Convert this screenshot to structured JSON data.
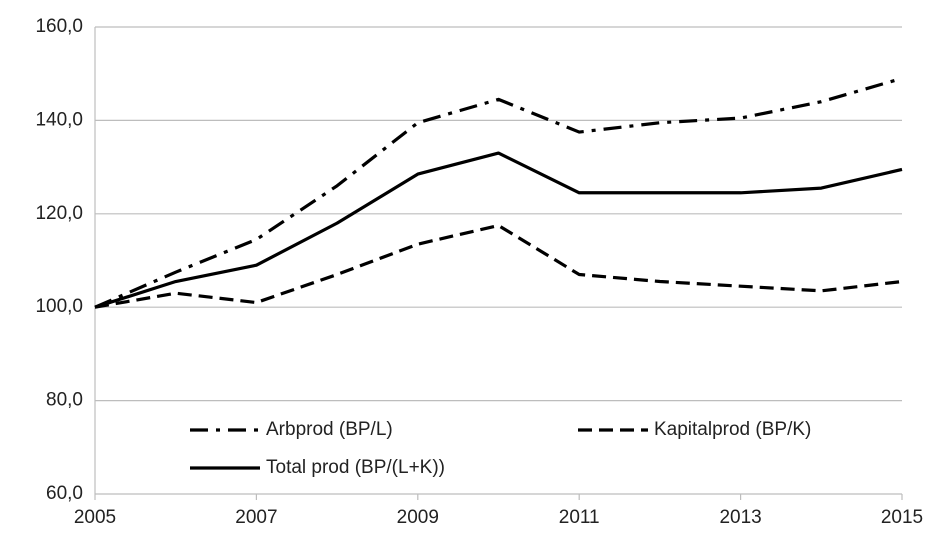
{
  "chart_data": {
    "type": "line",
    "x": [
      2005,
      2006,
      2007,
      2008,
      2009,
      2010,
      2011,
      2012,
      2013,
      2014,
      2015
    ],
    "series": [
      {
        "name": "Arbprod (BP/L)",
        "color": "#000000",
        "dash": "dashdot",
        "values": [
          100,
          107.5,
          114.5,
          126,
          139.5,
          144.5,
          137.5,
          139.5,
          140.5,
          144,
          149
        ]
      },
      {
        "name": "Kapitalprod (BP/K)",
        "color": "#000000",
        "dash": "dashed",
        "values": [
          100,
          103,
          101,
          107,
          113.5,
          117.5,
          107,
          105.5,
          104.5,
          103.5,
          105.5
        ]
      },
      {
        "name": "Total prod (BP/(L+K))",
        "color": "#000000",
        "dash": "solid",
        "values": [
          100,
          105.5,
          109,
          118,
          128.5,
          133,
          124.5,
          124.5,
          124.5,
          125.5,
          129.5
        ]
      }
    ],
    "xlim": [
      2005,
      2015
    ],
    "xticks": [
      2005,
      2007,
      2009,
      2011,
      2013,
      2015
    ],
    "ylim": [
      60,
      160
    ],
    "yticks": [
      {
        "value": 60,
        "label": "60,0"
      },
      {
        "value": 80,
        "label": "80,0"
      },
      {
        "value": 100,
        "label": "100,0"
      },
      {
        "value": 120,
        "label": "120,0"
      },
      {
        "value": 140,
        "label": "140,0"
      },
      {
        "value": 160,
        "label": "160,0"
      }
    ],
    "grid": true,
    "legend": "lower center"
  }
}
